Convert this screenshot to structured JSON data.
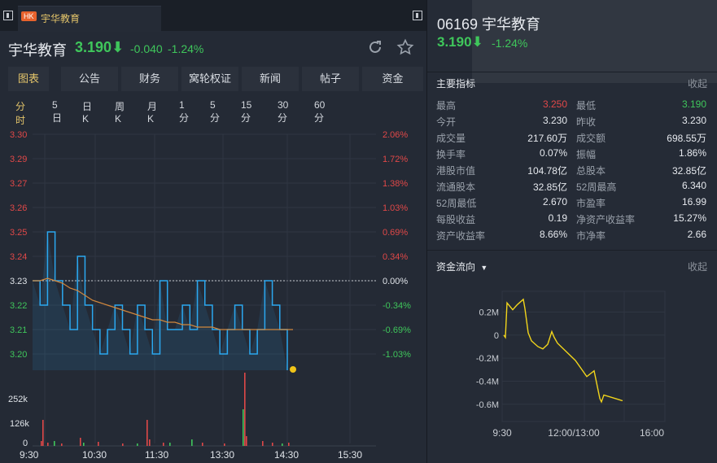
{
  "tab": {
    "badge": "HK",
    "title": "宇华教育"
  },
  "header": {
    "name": "宇华教育",
    "price": "3.190⬇",
    "change": "-0.040",
    "change_pct": "-1.24%"
  },
  "nav": [
    "图表",
    "公告",
    "财务",
    "窝轮权证",
    "新闻",
    "帖子",
    "资金"
  ],
  "nav_active": 0,
  "periods": [
    "分时",
    "5日",
    "日K",
    "周K",
    "月K",
    "1分",
    "5分",
    "15分",
    "30分",
    "60分"
  ],
  "period_active": 0,
  "price_axis": [
    "3.30",
    "3.29",
    "3.27",
    "3.26",
    "3.25",
    "3.24",
    "3.23",
    "3.22",
    "3.21",
    "3.20"
  ],
  "pct_axis": [
    "2.06%",
    "1.72%",
    "1.38%",
    "1.03%",
    "0.69%",
    "0.34%",
    "0.00%",
    "-0.34%",
    "-0.69%",
    "-1.03%"
  ],
  "vol_axis": [
    "252k",
    "126k",
    "0"
  ],
  "time_axis": [
    "9:30",
    "10:30",
    "11:30",
    "13:30",
    "14:30",
    "15:30"
  ],
  "quote": {
    "code_name": "06169 宇华教育",
    "price": "3.190⬇",
    "pct": "-1.24%"
  },
  "metrics_title": "主要指标",
  "collapse_label": "收起",
  "metrics": [
    {
      "l1": "最高",
      "v1": "3.250",
      "c1": "#e04848",
      "l2": "最低",
      "v2": "3.190",
      "c2": "#3fc65b"
    },
    {
      "l1": "今开",
      "v1": "3.230",
      "c1": "#e6e9ee",
      "l2": "昨收",
      "v2": "3.230",
      "c2": "#e6e9ee"
    },
    {
      "l1": "成交量",
      "v1": "217.60万",
      "c1": "#e6e9ee",
      "l2": "成交额",
      "v2": "698.55万",
      "c2": "#e6e9ee"
    },
    {
      "l1": "换手率",
      "v1": "0.07%",
      "c1": "#e6e9ee",
      "l2": "振幅",
      "v2": "1.86%",
      "c2": "#e6e9ee"
    },
    {
      "l1": "港股市值",
      "v1": "104.78亿",
      "c1": "#e6e9ee",
      "l2": "总股本",
      "v2": "32.85亿",
      "c2": "#e6e9ee"
    },
    {
      "l1": "流通股本",
      "v1": "32.85亿",
      "c1": "#e6e9ee",
      "l2": "52周最高",
      "v2": "6.340",
      "c2": "#e6e9ee"
    },
    {
      "l1": "52周最低",
      "v1": "2.670",
      "c1": "#e6e9ee",
      "l2": "市盈率",
      "v2": "16.99",
      "c2": "#e6e9ee"
    },
    {
      "l1": "每股收益",
      "v1": "0.19",
      "c1": "#e6e9ee",
      "l2": "净资产收益率",
      "v2": "15.27%",
      "c2": "#e6e9ee"
    },
    {
      "l1": "资产收益率",
      "v1": "8.66%",
      "c1": "#e6e9ee",
      "l2": "市净率",
      "v2": "2.66",
      "c2": "#e6e9ee"
    }
  ],
  "flow": {
    "title": "资金流向",
    "y_labels": [
      "0.2M",
      "0",
      "-0.2M",
      "-0.4M",
      "-0.6M"
    ],
    "x_labels": [
      "9:30",
      "12:00/13:00",
      "16:00"
    ]
  },
  "colors": {
    "up": "#e04848",
    "down": "#3fc65b",
    "accent": "#e3c46a",
    "price_line": "#2ba8f0",
    "avg_line": "#d1873d",
    "flow_line": "#f2d51b"
  },
  "chart_data": [
    {
      "type": "line",
      "title": "",
      "x_labels": [
        "9:30",
        "10:30",
        "11:30",
        "13:30",
        "14:30",
        "15:30"
      ],
      "series": [
        {
          "values": [
            3.23,
            3.22,
            3.25,
            3.23,
            3.22,
            3.21,
            3.24,
            3.22,
            3.21,
            3.2,
            3.21,
            3.22,
            3.21,
            3.2,
            3.22,
            3.21,
            3.2,
            3.23,
            3.21,
            3.21,
            3.22,
            3.21,
            3.23,
            3.22,
            3.21,
            3.2,
            3.21,
            3.22,
            3.21,
            3.2,
            3.21,
            3.23,
            3.22,
            3.21,
            3.19
          ]
        },
        {
          "values": [
            3.23,
            3.23,
            3.231,
            3.23,
            3.229,
            3.227,
            3.226,
            3.224,
            3.222,
            3.221,
            3.22,
            3.219,
            3.218,
            3.217,
            3.216,
            3.215,
            3.214,
            3.214,
            3.213,
            3.213,
            3.212,
            3.212,
            3.211,
            3.211,
            3.211,
            3.21,
            3.21,
            3.21,
            3.21,
            3.21,
            3.21,
            3.21,
            3.21,
            3.21,
            3.21
          ]
        }
      ],
      "ylim": [
        3.196,
        3.301
      ]
    },
    {
      "type": "line",
      "title": "资金流向",
      "x_labels": [
        "9:30",
        "12:00/13:00",
        "16:00"
      ],
      "y_labels": [
        "0.2M",
        "0",
        "-0.2M",
        "-0.4M",
        "-0.6M"
      ],
      "values": [
        0,
        -0.02,
        0.28,
        0.22,
        0.26,
        0.31,
        0.23,
        0.02,
        -0.05,
        -0.1,
        -0.12,
        -0.08,
        0.03,
        -0.02,
        -0.07,
        -0.22,
        -0.3,
        -0.36,
        -0.31,
        -0.55,
        -0.58,
        -0.52,
        -0.57
      ],
      "ylim": [
        -0.75,
        0.38
      ]
    }
  ]
}
